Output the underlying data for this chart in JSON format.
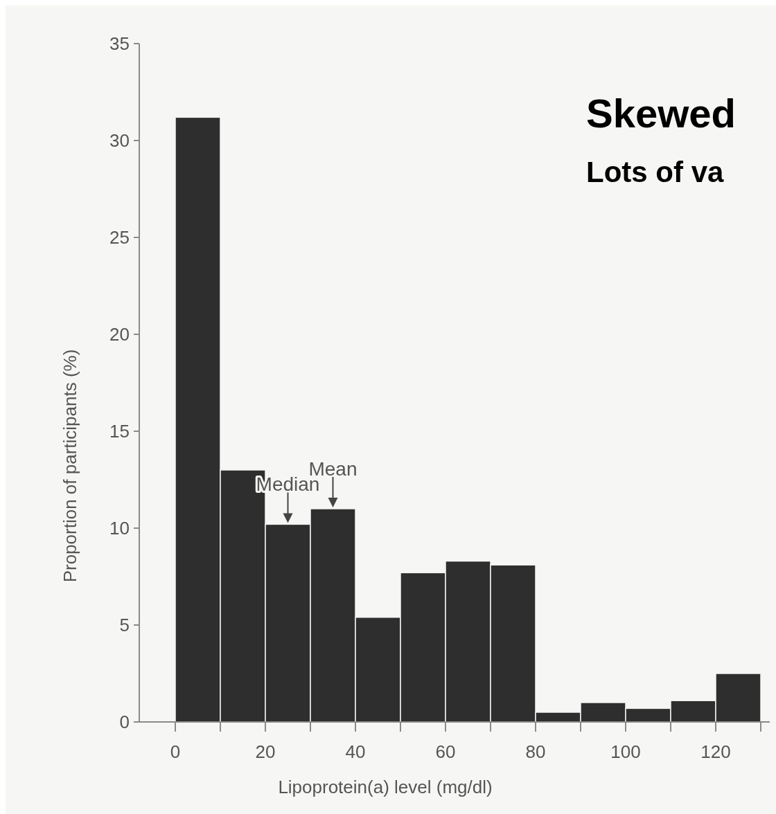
{
  "chart_data": {
    "type": "histogram",
    "title": "Skewed",
    "subtitle": "Lots of va",
    "xlabel": "Lipoprotein(a) level (mg/dl)",
    "ylabel": "Proportion of participants (%)",
    "bins": [
      0,
      10,
      20,
      30,
      40,
      50,
      60,
      70,
      80,
      90,
      100,
      110,
      120,
      130
    ],
    "values": [
      31.2,
      13.0,
      10.2,
      11.0,
      5.4,
      7.7,
      8.3,
      8.1,
      0.5,
      1.0,
      0.7,
      1.1,
      2.5
    ],
    "color": "#2e2e2e",
    "xlim": [
      -8,
      132
    ],
    "ylim": [
      0,
      35
    ],
    "xticks": [
      0,
      {
        "value": 10,
        "label": null
      },
      20,
      {
        "value": 30,
        "label": null
      },
      40,
      {
        "value": 50,
        "label": null
      },
      60,
      {
        "value": 70,
        "label": null
      },
      80,
      {
        "value": 90,
        "label": null
      },
      100,
      {
        "value": 110,
        "label": null
      },
      120,
      {
        "value": 130,
        "label": null
      }
    ],
    "yticks": [
      0,
      5,
      10,
      15,
      20,
      25,
      30,
      35
    ],
    "grid": false,
    "annotations": [
      {
        "text": "Median",
        "x": 25,
        "y": 10.2
      },
      {
        "text": "Mean",
        "x": 35,
        "y": 11.0
      }
    ]
  }
}
